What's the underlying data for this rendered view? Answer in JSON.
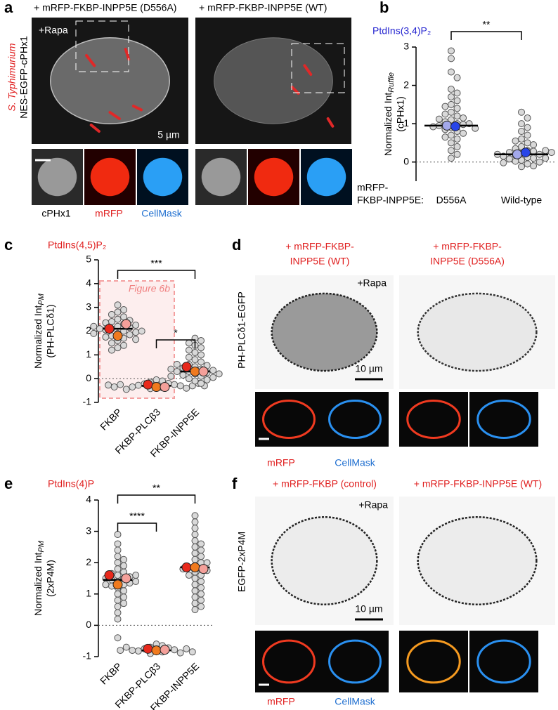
{
  "panel_letters": [
    "a",
    "b",
    "c",
    "d",
    "e",
    "f"
  ],
  "panel_a": {
    "titles": [
      "+ mRFP-FKBP-INPP5E (D556A)",
      "+ mRFP-FKBP-INPP5E (WT)"
    ],
    "side_label_1": "S. Typhimurium",
    "side_label_2": "NES-EGFP-cPHx1",
    "treatment": "+Rapa",
    "scale": "5 µm",
    "channels": [
      "cPHx1",
      "mRFP",
      "CellMask"
    ]
  },
  "panel_d": {
    "titles": [
      [
        "+ mRFP-FKBP-",
        "INPP5E (WT)"
      ],
      [
        "+ mRFP-FKBP-",
        "INPP5E (D556A)"
      ]
    ],
    "side_label": "PH-PLCδ1-EGFP",
    "treatment": "+Rapa",
    "scale": "10 µm",
    "channels": [
      "mRFP",
      "CellMask"
    ]
  },
  "panel_f": {
    "titles": [
      "+ mRFP-FKBP (control)",
      "+ mRFP-FKBP-INPP5E (WT)"
    ],
    "side_label": "EGFP-2xP4M",
    "treatment": "+Rapa",
    "scale": "10 µm",
    "channels": [
      "mRFP",
      "CellMask"
    ]
  },
  "chart_data": [
    {
      "type": "dot",
      "title": "PtdIns(3,4)P₂",
      "title_color": "#2626d0",
      "y_label": "Normalized Int",
      "y_label_sub": "Ruffle",
      "y_label_2": "(cPHx1)",
      "x_label": [
        "mRFP-",
        "FKBP-INPP5E:"
      ],
      "categories": [
        "D556A",
        "Wild-type"
      ],
      "ylim": [
        -0.5,
        3
      ],
      "yticks": [
        0,
        1,
        2,
        3
      ],
      "zero_line": true,
      "point_color": "#d9d9d9",
      "mean_colors": [
        "#a3a8ea",
        "#2845e8"
      ],
      "groups": [
        {
          "points": [
            2.9,
            2.7,
            2.35,
            2.2,
            1.9,
            1.8,
            1.7,
            1.6,
            1.5,
            1.45,
            1.4,
            1.3,
            1.25,
            1.2,
            1.15,
            1.1,
            1.05,
            1.0,
            0.98,
            0.95,
            0.9,
            0.85,
            0.8,
            0.75,
            0.7,
            0.65,
            0.6,
            0.5,
            0.4,
            0.3,
            0.2,
            0.1,
            1.0,
            0.92,
            1.12,
            0.88
          ],
          "means": [
            0.95,
            0.93
          ],
          "median": 0.95
        },
        {
          "points": [
            1.3,
            1.15,
            1.0,
            0.9,
            0.8,
            0.7,
            0.6,
            0.55,
            0.5,
            0.45,
            0.4,
            0.35,
            0.3,
            0.28,
            0.25,
            0.22,
            0.2,
            0.18,
            0.15,
            0.12,
            0.1,
            0.08,
            0.05,
            0.02,
            0.0,
            -0.02,
            -0.05,
            -0.1,
            -0.12,
            0.3,
            0.2,
            0.1,
            0.25
          ],
          "means": [
            0.2,
            0.25
          ],
          "median": 0.2
        }
      ],
      "significance": [
        {
          "pair": [
            0,
            1
          ],
          "label": "**"
        }
      ]
    },
    {
      "type": "dot",
      "title": "PtdIns(4,5)P₂",
      "title_color": "#e02020",
      "y_label": "Normalized Int",
      "y_label_sub": "PM",
      "y_label_2": "(PH-PLCδ1)",
      "categories": [
        "FKBP",
        "FKBP-PLCβ3",
        "FKBP-INPP5E"
      ],
      "ylim": [
        -1,
        5
      ],
      "yticks": [
        -1,
        0,
        1,
        2,
        3,
        4,
        5
      ],
      "zero_line": true,
      "point_color": "#d9d9d9",
      "mean_colors": [
        "#e8291c",
        "#f07a1e",
        "#f4a09a"
      ],
      "groups": [
        {
          "points": [
            3.1,
            2.9,
            2.8,
            2.7,
            2.6,
            2.5,
            2.45,
            2.4,
            2.35,
            2.3,
            2.25,
            2.2,
            2.15,
            2.1,
            2.05,
            2.0,
            1.95,
            1.9,
            1.85,
            1.8,
            1.75,
            1.7,
            1.65,
            1.6,
            1.5,
            1.4,
            1.3,
            1.2,
            2.1,
            2.0,
            2.2,
            1.9
          ],
          "means": [
            2.1,
            1.8,
            2.3
          ],
          "median": 2.1
        },
        {
          "points": [
            -0.05,
            -0.1,
            -0.15,
            -0.2,
            -0.22,
            -0.25,
            -0.28,
            -0.3,
            -0.32,
            -0.35,
            -0.38,
            -0.4,
            -0.42,
            -0.45,
            -0.3,
            -0.25,
            -0.2,
            -0.35,
            -0.3,
            -0.27
          ],
          "means": [
            -0.25,
            -0.35,
            -0.35
          ],
          "median": -0.3
        },
        {
          "points": [
            1.7,
            1.6,
            1.5,
            1.4,
            1.3,
            1.2,
            1.1,
            1.0,
            0.9,
            0.8,
            0.7,
            0.6,
            0.55,
            0.5,
            0.45,
            0.4,
            0.35,
            0.3,
            0.25,
            0.2,
            0.15,
            0.1,
            0.05,
            0.0,
            -0.05,
            -0.1,
            -0.2,
            0.3,
            0.2,
            0.4,
            0.6,
            0.1
          ],
          "means": [
            0.5,
            0.3,
            0.3
          ],
          "median": 0.3
        }
      ],
      "annotation": "Figure 6b",
      "significance": [
        {
          "pair": [
            0,
            2
          ],
          "label": "***"
        },
        {
          "pair": [
            1,
            2
          ],
          "label": "*"
        }
      ]
    },
    {
      "type": "dot",
      "title": "PtdIns(4)P",
      "title_color": "#e02020",
      "y_label": "Normalized Int",
      "y_label_sub": "PM",
      "y_label_2": "(2xP4M)",
      "categories": [
        "FKBP",
        "FKBP-PLCβ3",
        "FKBP-INPP5E"
      ],
      "ylim": [
        -1,
        4
      ],
      "yticks": [
        -1,
        0,
        1,
        2,
        3,
        4
      ],
      "zero_line": true,
      "point_color": "#d9d9d9",
      "mean_colors": [
        "#e8291c",
        "#f07a1e",
        "#f4a09a"
      ],
      "groups": [
        {
          "points": [
            2.9,
            2.6,
            2.4,
            2.2,
            2.1,
            2.0,
            1.9,
            1.8,
            1.7,
            1.65,
            1.6,
            1.55,
            1.5,
            1.45,
            1.4,
            1.35,
            1.3,
            1.25,
            1.2,
            1.1,
            1.0,
            0.9,
            0.8,
            0.7,
            0.6,
            0.4,
            0.2,
            -0.4,
            1.5,
            1.4,
            1.6,
            1.3
          ],
          "means": [
            1.6,
            1.3,
            1.5
          ],
          "median": 1.45
        },
        {
          "points": [
            -0.6,
            -0.65,
            -0.7,
            -0.72,
            -0.75,
            -0.78,
            -0.8,
            -0.82,
            -0.85,
            -0.88,
            -0.9,
            -0.8,
            -0.75,
            -0.7,
            -0.85,
            -0.8
          ],
          "means": [
            -0.75,
            -0.8,
            -0.78
          ],
          "median": -0.8
        },
        {
          "points": [
            3.5,
            3.3,
            3.1,
            2.9,
            2.7,
            2.6,
            2.5,
            2.4,
            2.3,
            2.2,
            2.1,
            2.0,
            1.9,
            1.85,
            1.8,
            1.75,
            1.7,
            1.6,
            1.5,
            1.4,
            1.3,
            1.2,
            1.1,
            1.0,
            0.9,
            0.8,
            0.7,
            0.6,
            0.5,
            1.8,
            2.0,
            1.6
          ],
          "means": [
            1.85,
            1.85,
            1.8
          ],
          "median": 1.85
        }
      ],
      "significance": [
        {
          "pair": [
            0,
            2
          ],
          "label": "**"
        },
        {
          "pair": [
            0,
            1
          ],
          "label": "****"
        }
      ]
    }
  ]
}
